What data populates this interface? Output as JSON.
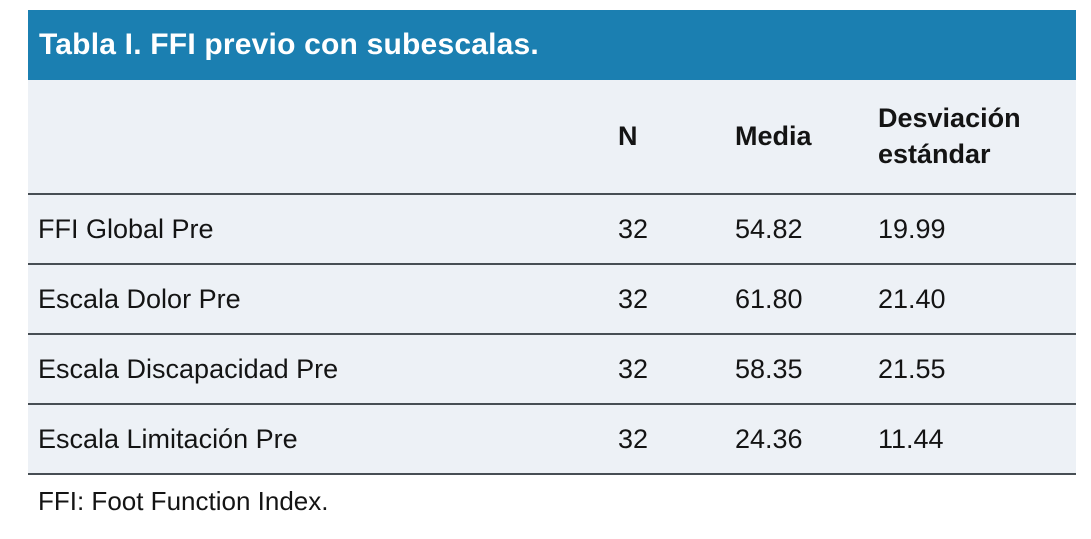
{
  "title": "Tabla I. FFI previo con subescalas.",
  "table": {
    "header": {
      "label": "",
      "n": "N",
      "media": "Media",
      "sd": "Desviación estándar"
    },
    "rows": [
      {
        "label": "FFI Global Pre",
        "n": "32",
        "media": "54.82",
        "sd": "19.99"
      },
      {
        "label": "Escala Dolor Pre",
        "n": "32",
        "media": "61.80",
        "sd": "21.40"
      },
      {
        "label": "Escala Discapacidad Pre",
        "n": "32",
        "media": "58.35",
        "sd": "21.55"
      },
      {
        "label": "Escala Limitación Pre",
        "n": "32",
        "media": "24.36",
        "sd": "11.44"
      }
    ]
  },
  "footnote": "FFI: Foot Function Index.",
  "colors": {
    "title_bar_bg": "#1b7fb1",
    "title_text": "#ffffff",
    "row_bg": "#edf1f6",
    "divider": "#474e54",
    "body_text": "#141414",
    "page_bg": "#ffffff"
  }
}
